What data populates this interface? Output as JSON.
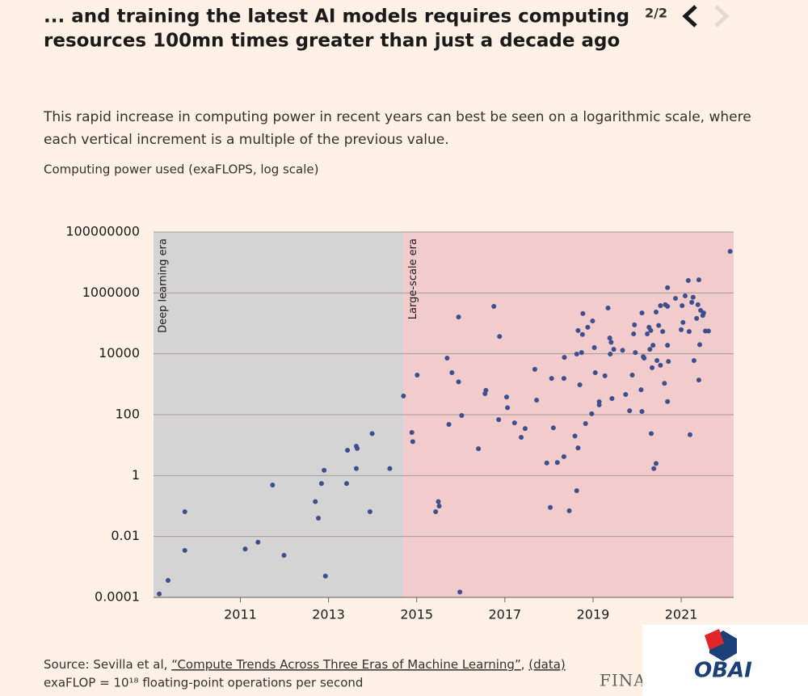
{
  "header": {
    "title": [
      "... and training the latest AI models requires computing",
      "resources 100mn times greater than just a decade ago"
    ],
    "page": "2/2"
  },
  "description": [
    "This rapid increase in computing power in recent years can best be seen on a logarithmic scale, where",
    "each vertical increment is a multiple of the previous value."
  ],
  "chart_data": {
    "type": "scatter",
    "y_label": "Computing power used (exaFLOPS, log scale)",
    "yscale": "log",
    "grid": true,
    "color": "#3d4f8c",
    "xlim": [
      2009.03,
      2022.19
    ],
    "xticks": [
      2011,
      2013,
      2015,
      2017,
      2019,
      2021
    ],
    "ylim": [
      0.0001,
      100000000
    ],
    "yticks": [
      0.0001,
      0.01,
      1,
      100,
      10000,
      1000000,
      100000000
    ],
    "eras": [
      {
        "label": "Deep learning era",
        "start": 2009.03,
        "end": 2014.7,
        "color": "#d4d4d4"
      },
      {
        "label": "Large-scale era",
        "start": 2014.7,
        "end": 2022.19,
        "color": "#f2cccc"
      }
    ],
    "x": [
      2009.16,
      2009.36,
      2009.74,
      2009.74,
      2011.11,
      2011.4,
      2011.73,
      2011.99,
      2012.7,
      2012.77,
      2012.84,
      2012.9,
      2012.93,
      2013.41,
      2013.43,
      2013.63,
      2013.65,
      2013.63,
      2013.94,
      2013.99,
      2014.39,
      2014.7,
      2014.89,
      2014.91,
      2015.01,
      2015.43,
      2015.49,
      2015.51,
      2015.69,
      2015.73,
      2015.8,
      2015.95,
      2015.95,
      2015.98,
      2016.02,
      2016.4,
      2016.55,
      2016.57,
      2016.75,
      2016.86,
      2016.88,
      2017.04,
      2017.06,
      2017.22,
      2017.37,
      2017.46,
      2017.68,
      2017.72,
      2017.95,
      2018.03,
      2018.06,
      2018.1,
      2018.19,
      2018.34,
      2018.34,
      2018.35,
      2018.46,
      2018.59,
      2018.63,
      2018.63,
      2018.66,
      2018.66,
      2018.7,
      2018.74,
      2018.76,
      2018.77,
      2018.83,
      2018.88,
      2018.97,
      2018.99,
      2019.03,
      2019.05,
      2019.14,
      2019.14,
      2019.27,
      2019.34,
      2019.38,
      2019.39,
      2019.41,
      2019.43,
      2019.47,
      2019.67,
      2019.74,
      2019.83,
      2019.89,
      2019.92,
      2019.94,
      2019.96,
      2020.09,
      2020.11,
      2020.11,
      2020.14,
      2020.16,
      2020.23,
      2020.27,
      2020.29,
      2020.31,
      2020.32,
      2020.34,
      2020.36,
      2020.38,
      2020.43,
      2020.43,
      2020.45,
      2020.49,
      2020.53,
      2020.53,
      2020.58,
      2020.62,
      2020.64,
      2020.69,
      2020.69,
      2020.69,
      2020.69,
      2020.71,
      2020.87,
      2021.0,
      2021.02,
      2021.04,
      2021.09,
      2021.16,
      2021.18,
      2021.2,
      2021.24,
      2021.27,
      2021.29,
      2021.35,
      2021.38,
      2021.4,
      2021.4,
      2021.42,
      2021.44,
      2021.49,
      2021.51,
      2021.55,
      2021.62,
      2022.11
    ],
    "values": [
      0.00013,
      0.00036,
      0.065,
      0.0035,
      0.0039,
      0.0065,
      0.49,
      0.0024,
      0.14,
      0.04,
      0.55,
      1.5,
      0.0005,
      0.55,
      6.8,
      9.2,
      7.8,
      1.7,
      0.065,
      24,
      1.7,
      410,
      26,
      13,
      2000,
      0.065,
      0.14,
      0.1,
      7200,
      48,
      2400,
      1200,
      162000,
      0.00015,
      94,
      7.6,
      490,
      630,
      360000,
      69,
      37000,
      380,
      170,
      54,
      18,
      35,
      3100,
      300,
      2.6,
      0.09,
      1550,
      37,
      2.7,
      4.2,
      1550,
      7600,
      0.07,
      20,
      0.32,
      9800,
      8.1,
      58000,
      960,
      11000,
      43000,
      210000,
      51,
      74000,
      107,
      120000,
      16000,
      2400,
      265,
      210,
      1900,
      320000,
      33000,
      9800,
      24000,
      340,
      14000,
      13000,
      460,
      135,
      2000,
      45000,
      89000,
      11000,
      660,
      128,
      220000,
      8100,
      7200,
      45000,
      74000,
      14000,
      58000,
      24,
      3500,
      19000,
      1.7,
      2.5,
      235000,
      6000,
      85000,
      380000,
      4200,
      54000,
      1070,
      410000,
      1480000,
      360000,
      19000,
      270,
      5600,
      660000,
      62000,
      380000,
      107000,
      800000,
      2550000,
      54000,
      22,
      490000,
      720000,
      6000,
      145000,
      410000,
      2700000,
      1380,
      20000,
      265000,
      182000,
      220000,
      56000,
      56000,
      23000000
    ]
  },
  "footer": {
    "source_prefix": "Source: Sevilla et al, ",
    "source_link": "“Compute Trends Across Three Eras of Machine Learning”",
    "source_sep": ", ",
    "data_link": "(data)",
    "note": "exaFLOP = 10¹⁸ floating-point operations per second",
    "brand": "FINA",
    "watermark": "OBAI"
  }
}
